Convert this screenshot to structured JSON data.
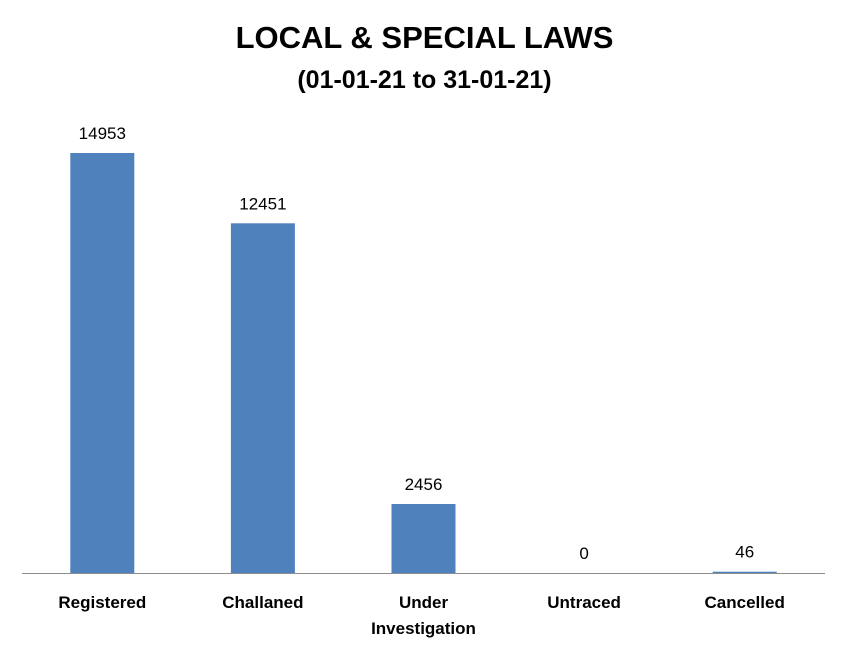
{
  "chart_data": {
    "type": "bar",
    "title": "LOCAL & SPECIAL LAWS",
    "subtitle": "(01-01-21 to 31-01-21)",
    "categories": [
      "Registered",
      "Challaned",
      "Under Investigation",
      "Untraced",
      "Cancelled"
    ],
    "category_lines": [
      [
        "Registered"
      ],
      [
        "Challaned"
      ],
      [
        "Under",
        "Investigation"
      ],
      [
        "Untraced"
      ],
      [
        "Cancelled"
      ]
    ],
    "values": [
      14953,
      12451,
      2456,
      0,
      46
    ],
    "data_labels": [
      "14953",
      "12451",
      "2456",
      "0",
      "46"
    ],
    "ylim": [
      0,
      14953
    ],
    "grid": false,
    "legend": "none",
    "colors": {
      "bar": "#4F81BD",
      "axis": "#8C8C8C",
      "text": "#000000"
    }
  }
}
